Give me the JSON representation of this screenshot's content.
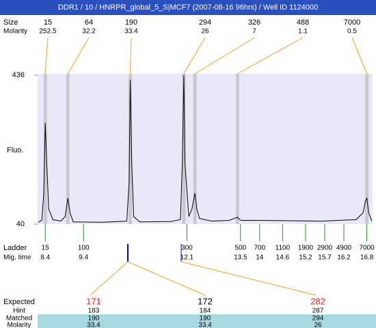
{
  "chart_data": {
    "type": "line",
    "title": "DDR1 / 10 / HNRPR_global_5_S|MCF7 (2007-08-16 96hrs) / Well ID 1124000",
    "ylabel": "Fluo.",
    "ylim": [
      40,
      436
    ],
    "yticks": [
      436,
      40
    ],
    "xlim": [
      8.2,
      16.95
    ],
    "color": "#000000",
    "peaks": {
      "size_label": "Size",
      "molarity_label": "Molarity",
      "sizes": [
        15,
        64,
        190,
        294,
        326,
        488,
        7000
      ],
      "molarity": [
        252.5,
        32.2,
        33.4,
        26,
        7,
        1.1,
        0.5
      ],
      "times": [
        8.4,
        8.99,
        10.62,
        12.02,
        12.31,
        13.42,
        16.8
      ]
    },
    "x": [
      8.22,
      8.31,
      8.36,
      8.4,
      8.44,
      8.49,
      8.6,
      8.81,
      8.92,
      8.99,
      9.05,
      9.13,
      9.89,
      10.53,
      10.59,
      10.62,
      10.66,
      10.71,
      10.87,
      11.68,
      11.93,
      11.98,
      12.02,
      12.05,
      12.15,
      12.23,
      12.31,
      12.36,
      12.43,
      12.75,
      13.2,
      13.36,
      13.42,
      13.51,
      14.01,
      14.73,
      15.62,
      16.52,
      16.7,
      16.76,
      16.8,
      16.85,
      16.93
    ],
    "values": [
      45,
      50,
      120,
      309,
      200,
      80,
      52,
      48,
      60,
      109,
      70,
      46,
      45,
      48,
      150,
      423,
      200,
      60,
      46,
      47,
      52,
      200,
      436,
      200,
      60,
      80,
      122,
      80,
      55,
      48,
      50,
      56,
      58,
      50,
      50,
      49,
      48,
      52,
      70,
      100,
      109,
      70,
      48
    ],
    "ladder": {
      "label": "Ladder",
      "time_label": "Mig. time",
      "sizes": [
        15,
        100,
        300,
        500,
        700,
        1100,
        1900,
        2900,
        4900,
        7000
      ],
      "times": [
        8.4,
        9.4,
        12.1,
        13.5,
        14,
        14.6,
        15.2,
        15.7,
        16.2,
        16.8
      ]
    },
    "matches": {
      "labels": [
        "Expected",
        "Hint",
        "Matched",
        "Molarity"
      ],
      "expected": [
        171,
        172,
        282
      ],
      "expected_colors": [
        "#e02020",
        "#000000",
        "#e02020"
      ],
      "hint": [
        183,
        184,
        287
      ],
      "matched": [
        190,
        190,
        294
      ],
      "molarity": [
        33.4,
        33.4,
        26
      ]
    }
  }
}
